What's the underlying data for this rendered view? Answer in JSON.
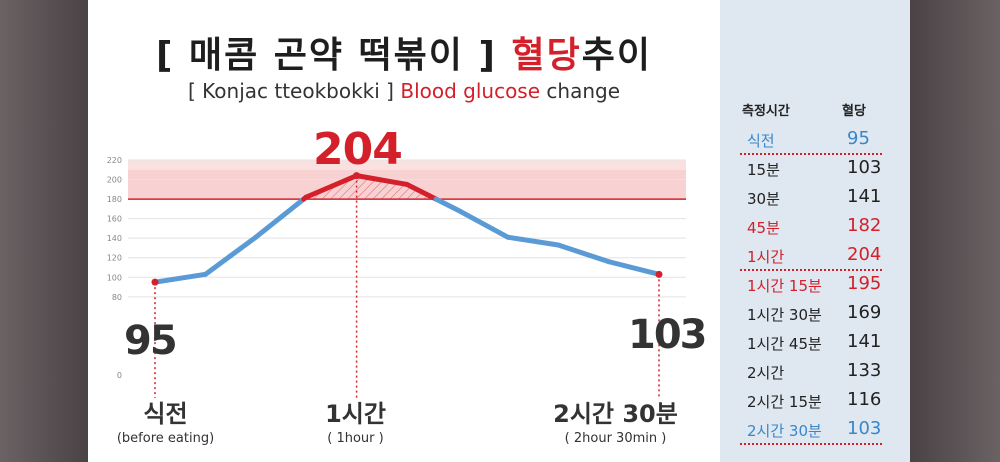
{
  "header": {
    "title_main": "[ 매콤 곤약 떡볶이 ]",
    "title_red": "혈당",
    "title_tail": "추이",
    "subtitle_pre": "[ Konjac tteokbokki ]",
    "subtitle_red": "Blood glucose",
    "subtitle_post": "change"
  },
  "colors": {
    "line": "#5b9bd5",
    "danger": "#d3202a",
    "point": "#d3202a"
  },
  "chart_data": {
    "type": "line",
    "x_minutes": [
      0,
      15,
      30,
      45,
      60,
      75,
      90,
      105,
      120,
      135,
      150
    ],
    "values": [
      95,
      103,
      141,
      182,
      204,
      195,
      169,
      141,
      133,
      116,
      103
    ],
    "ylim": [
      0,
      220
    ],
    "yticks": [
      "0",
      "80",
      "100",
      "120",
      "140",
      "160",
      "180",
      "200",
      "220"
    ],
    "threshold": 180,
    "grid": true,
    "annotations": {
      "start_value": "95",
      "peak_value": "204",
      "end_value": "103"
    },
    "x_labels": [
      {
        "main": "식전",
        "sub": "(before eating)"
      },
      {
        "main": "1시간",
        "sub": "( 1hour )"
      },
      {
        "main": "2시간 30분",
        "sub": "( 2hour 30min )"
      }
    ]
  },
  "table": {
    "col_time": "측정시간",
    "col_value": "혈당",
    "rows": [
      {
        "time": "식전",
        "value": "95",
        "style": "blue"
      },
      {
        "time": "15분",
        "value": "103",
        "style": ""
      },
      {
        "time": "30분",
        "value": "141",
        "style": ""
      },
      {
        "time": "45분",
        "value": "182",
        "style": "red"
      },
      {
        "time": "1시간",
        "value": "204",
        "style": "red"
      },
      {
        "time": "1시간 15분",
        "value": "195",
        "style": "red"
      },
      {
        "time": "1시간 30분",
        "value": "169",
        "style": ""
      },
      {
        "time": "1시간 45분",
        "value": "141",
        "style": ""
      },
      {
        "time": "2시간",
        "value": "133",
        "style": ""
      },
      {
        "time": "2시간 15분",
        "value": "116",
        "style": ""
      },
      {
        "time": "2시간 30분",
        "value": "103",
        "style": "blue"
      }
    ]
  }
}
